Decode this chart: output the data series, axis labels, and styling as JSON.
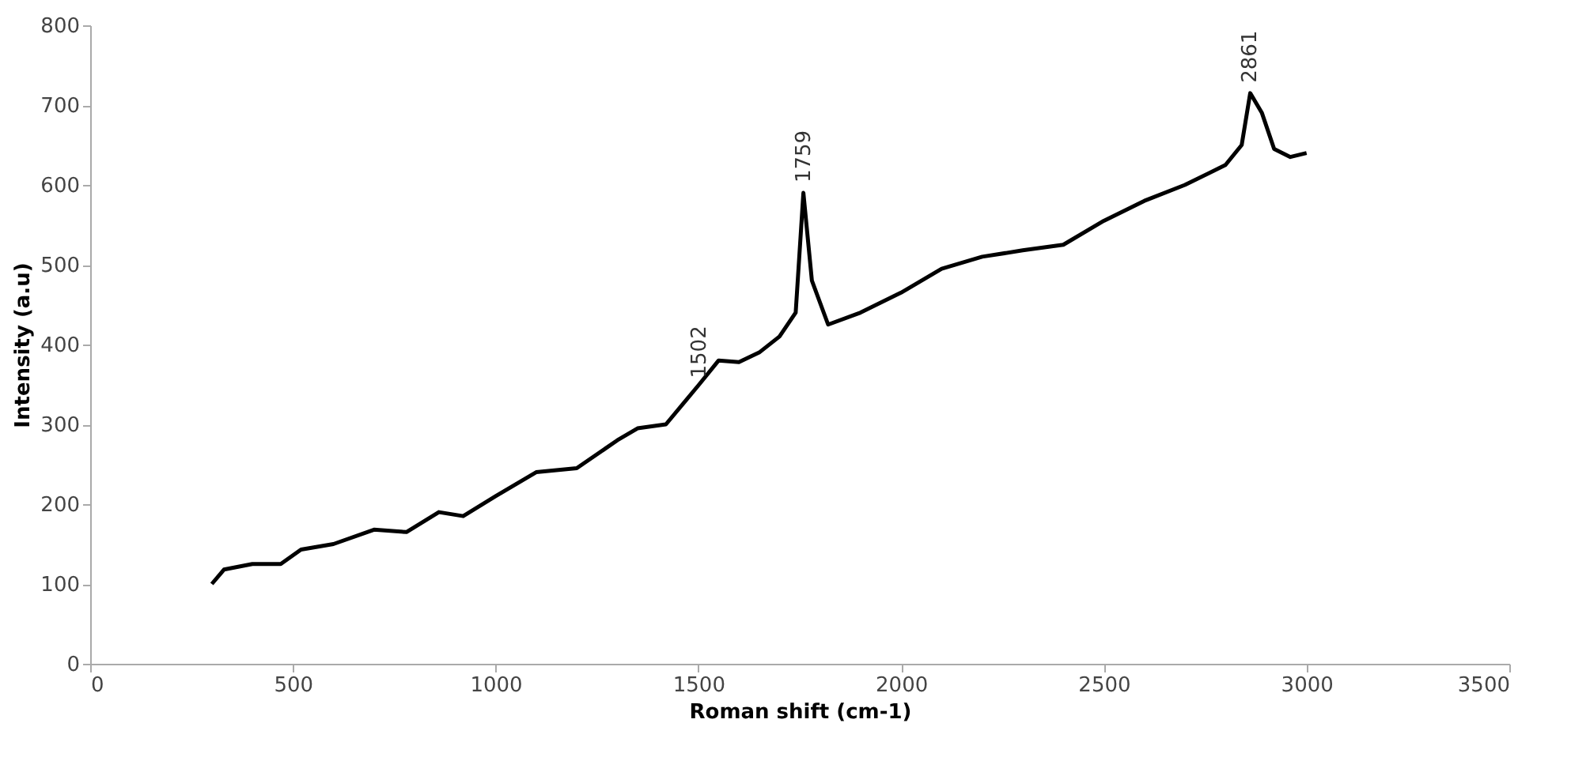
{
  "chart_data": {
    "type": "line",
    "xlabel": "Roman shift (cm-1)",
    "ylabel": "Intensity (a.u)",
    "xlim": [
      0,
      3500
    ],
    "xticks": [
      0,
      500,
      1000,
      1500,
      2000,
      2500,
      3000,
      3500
    ],
    "ylim": [
      0,
      800
    ],
    "yticks": [
      0,
      100,
      200,
      300,
      400,
      500,
      600,
      700,
      800
    ],
    "grid": false,
    "marker": "none",
    "line_style": "solid",
    "series": [
      {
        "color": "#000000",
        "x": [
          300,
          330,
          400,
          470,
          520,
          600,
          700,
          780,
          860,
          920,
          1000,
          1100,
          1200,
          1300,
          1350,
          1420,
          1502,
          1550,
          1600,
          1650,
          1700,
          1740,
          1759,
          1780,
          1820,
          1900,
          2000,
          2100,
          2200,
          2300,
          2400,
          2500,
          2600,
          2700,
          2800,
          2840,
          2861,
          2890,
          2920,
          2960,
          3000
        ],
        "values": [
          100,
          118,
          125,
          125,
          143,
          150,
          168,
          165,
          190,
          185,
          210,
          240,
          245,
          280,
          295,
          300,
          350,
          380,
          378,
          390,
          410,
          440,
          590,
          480,
          425,
          440,
          465,
          495,
          510,
          518,
          525,
          555,
          580,
          600,
          625,
          650,
          715,
          690,
          645,
          635,
          640
        ]
      }
    ],
    "annotations": [
      {
        "text": "1502",
        "x": 1502,
        "y": 350
      },
      {
        "text": "1759",
        "x": 1759,
        "y": 595
      },
      {
        "text": "2861",
        "x": 2861,
        "y": 720
      }
    ]
  }
}
